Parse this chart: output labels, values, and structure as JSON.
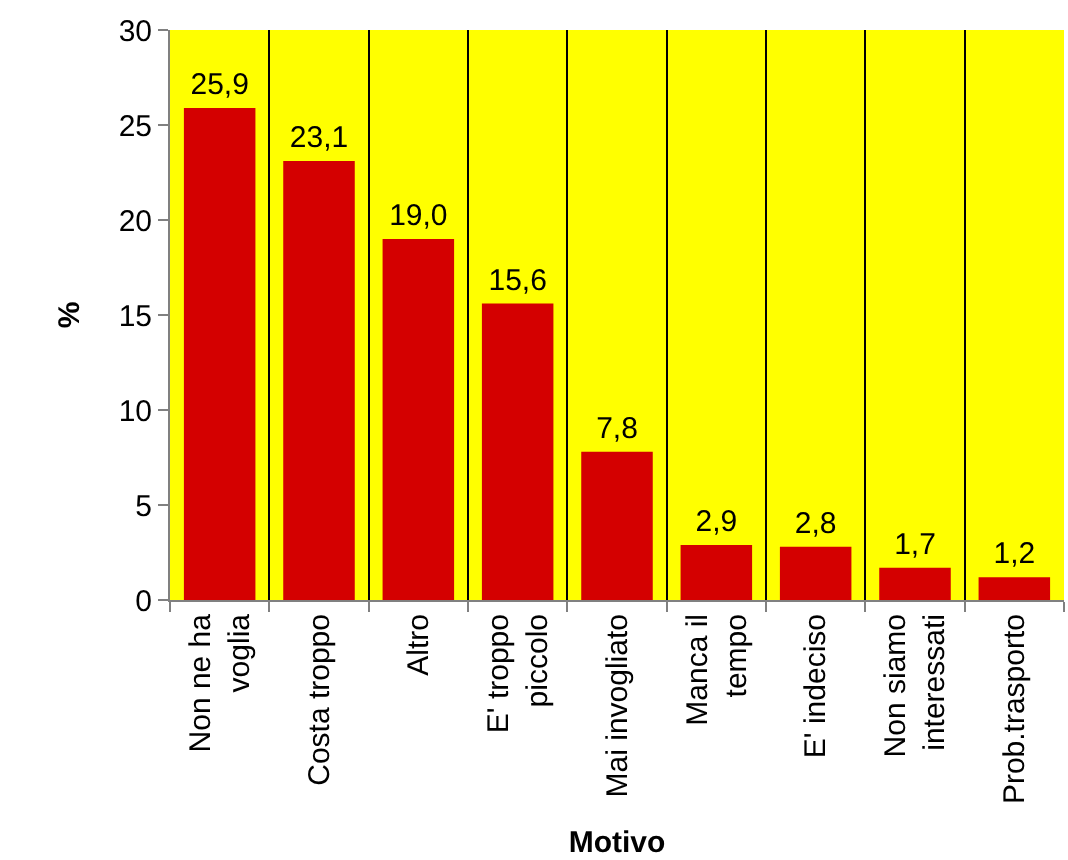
{
  "chart_data": {
    "type": "bar",
    "xlabel": "Motivo",
    "ylabel": "%",
    "categories": [
      "Non ne ha\nvoglia",
      "Costa troppo",
      "Altro",
      "E' troppo\npiccolo",
      "Mai invogliato",
      "Manca il\ntempo",
      "E' indeciso",
      "Non siamo\ninteressati",
      "Prob.trasporto"
    ],
    "values": [
      25.9,
      23.1,
      19.0,
      15.6,
      7.8,
      2.9,
      2.8,
      1.7,
      1.2
    ],
    "value_labels": [
      "25,9",
      "23,1",
      "19,0",
      "15,6",
      "7,8",
      "2,9",
      "2,8",
      "1,7",
      "1,2"
    ],
    "color": "#d40000",
    "ylim": [
      0,
      30
    ],
    "yticks": [
      0,
      5,
      10,
      15,
      20,
      25,
      30
    ],
    "grid": "x"
  }
}
